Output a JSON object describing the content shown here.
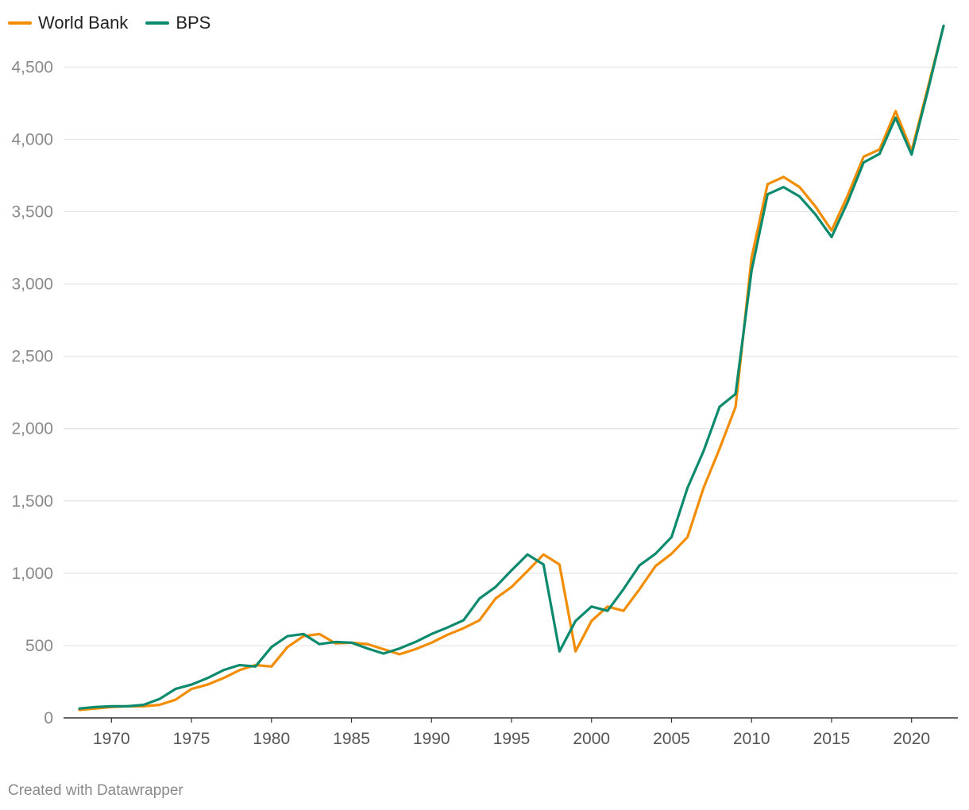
{
  "legend": [
    {
      "label": "World Bank",
      "color": "#F28C00"
    },
    {
      "label": "BPS",
      "color": "#0B8A6E"
    }
  ],
  "footer": {
    "credit": "Created with Datawrapper"
  },
  "chart_data": {
    "type": "line",
    "title": "",
    "xlabel": "",
    "ylabel": "",
    "xlim": [
      1968,
      2022
    ],
    "ylim": [
      0,
      4700
    ],
    "yticks": [
      0,
      500,
      1000,
      1500,
      2000,
      2500,
      3000,
      3500,
      4000,
      4500
    ],
    "ytick_labels": [
      "0",
      "500",
      "1,000",
      "1,500",
      "2,000",
      "2,500",
      "3,000",
      "3,500",
      "4,000",
      "4,500"
    ],
    "xticks": [
      1970,
      1975,
      1980,
      1985,
      1990,
      1995,
      2000,
      2005,
      2010,
      2015,
      2020
    ],
    "xtick_labels": [
      "1970",
      "1975",
      "1980",
      "1985",
      "1990",
      "1995",
      "2000",
      "2005",
      "2010",
      "2015",
      "2020"
    ],
    "grid": true,
    "legend_position": "top-left",
    "x": [
      1968,
      1969,
      1970,
      1971,
      1972,
      1973,
      1974,
      1975,
      1976,
      1977,
      1978,
      1979,
      1980,
      1981,
      1982,
      1983,
      1984,
      1985,
      1986,
      1987,
      1988,
      1989,
      1990,
      1991,
      1992,
      1993,
      1994,
      1995,
      1996,
      1997,
      1998,
      1999,
      2000,
      2001,
      2002,
      2003,
      2004,
      2005,
      2006,
      2007,
      2008,
      2009,
      2010,
      2011,
      2012,
      2013,
      2014,
      2015,
      2016,
      2017,
      2018,
      2019,
      2020,
      2021,
      2022
    ],
    "series": [
      {
        "name": "World Bank",
        "color": "#F28C00",
        "values": [
          55,
          65,
          75,
          80,
          80,
          90,
          125,
          200,
          230,
          275,
          330,
          365,
          355,
          490,
          565,
          580,
          515,
          520,
          510,
          475,
          440,
          475,
          520,
          575,
          620,
          675,
          825,
          905,
          1015,
          1130,
          1060,
          460,
          670,
          770,
          740,
          890,
          1050,
          1135,
          1250,
          1590,
          1860,
          2150,
          3180,
          3690,
          3740,
          3670,
          3535,
          3370,
          3610,
          3880,
          3930,
          4195,
          3920,
          4350,
          4785
        ]
      },
      {
        "name": "BPS",
        "color": "#0B8A6E",
        "values": [
          65,
          75,
          80,
          80,
          90,
          130,
          200,
          230,
          275,
          330,
          365,
          355,
          490,
          565,
          580,
          510,
          525,
          520,
          480,
          445,
          480,
          525,
          580,
          625,
          675,
          825,
          905,
          1020,
          1130,
          1060,
          460,
          670,
          770,
          740,
          890,
          1055,
          1135,
          1250,
          1590,
          1845,
          2150,
          2240,
          3090,
          3620,
          3670,
          3605,
          3480,
          3325,
          3565,
          3840,
          3900,
          4150,
          3895,
          4330,
          4785
        ]
      }
    ]
  }
}
